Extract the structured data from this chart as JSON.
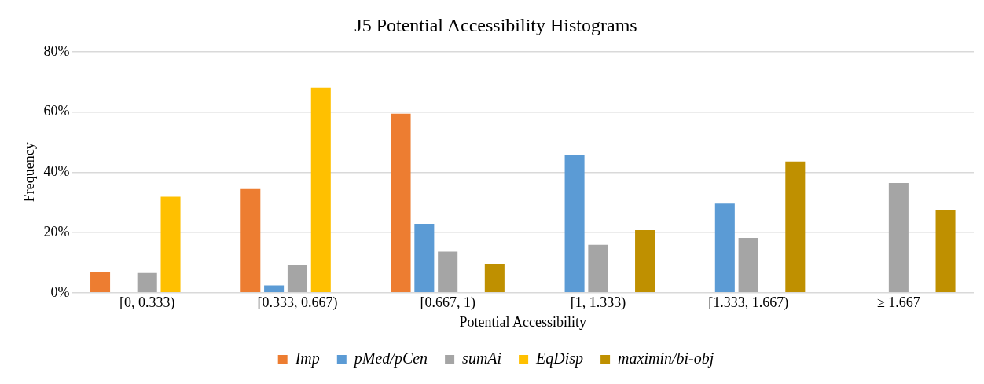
{
  "chart_data": {
    "type": "bar",
    "title": "J5 Potential Accessibility Histograms",
    "xlabel": "Potential Accessibility",
    "ylabel": "Frequency",
    "categories": [
      "[0, 0.333)",
      "[0.333, 0.667)",
      "[0.667, 1)",
      "[1, 1.333)",
      "[1.333, 1.667)",
      "≥ 1.667"
    ],
    "series": [
      {
        "name": "Imp",
        "color": "#ed7d31",
        "values": [
          6.8,
          34.4,
          59.4,
          0,
          0,
          0
        ]
      },
      {
        "name": "pMed/pCen",
        "color": "#5b9bd5",
        "values": [
          0,
          2.4,
          22.9,
          45.6,
          29.6,
          0
        ]
      },
      {
        "name": "sumAi",
        "color": "#a5a5a5",
        "values": [
          6.5,
          9.2,
          13.6,
          15.9,
          18.2,
          36.4
        ]
      },
      {
        "name": "EqDisp",
        "color": "#ffc000",
        "values": [
          31.9,
          68,
          0,
          0,
          0,
          0
        ]
      },
      {
        "name": "maximin/bi-obj",
        "color": "#bf9000",
        "values": [
          0,
          0,
          9.6,
          20.8,
          43.5,
          27.5
        ]
      }
    ],
    "ylim": [
      0,
      80
    ],
    "yticks": [
      {
        "value": 0,
        "label": "0%"
      },
      {
        "value": 20,
        "label": "20%"
      },
      {
        "value": 40,
        "label": "40%"
      },
      {
        "value": 60,
        "label": "60%"
      },
      {
        "value": 80,
        "label": "80%"
      }
    ],
    "grid": "y",
    "legend": "bottom"
  }
}
